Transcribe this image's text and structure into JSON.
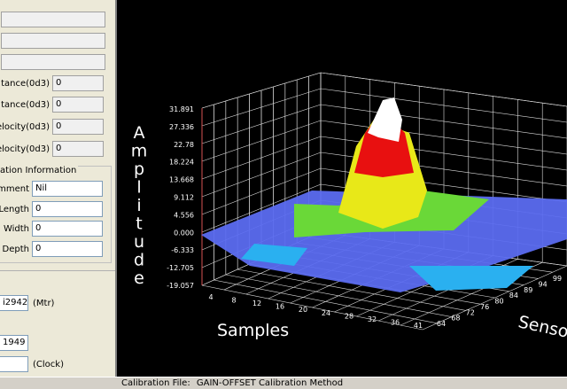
{
  "form": {
    "fields": [
      {
        "label": "",
        "value": ""
      },
      {
        "label": "",
        "value": ""
      },
      {
        "label": "",
        "value": ""
      },
      {
        "label": "tance(0d3)",
        "value": "0"
      },
      {
        "label": "tance(0d3)",
        "value": "0"
      },
      {
        "label": "elocity(0d3)",
        "value": "0"
      },
      {
        "label": "elocity(0d3)",
        "value": "0"
      }
    ],
    "group_title": "ation Information",
    "group_fields": [
      {
        "label": "omment",
        "value": "Nil"
      },
      {
        "label": "Length",
        "value": "0"
      },
      {
        "label": "l Width",
        "value": "0"
      },
      {
        "label": "l Depth",
        "value": "0"
      }
    ],
    "distance": {
      "value": "i2942",
      "unit": "(Mtr)"
    },
    "year": "1949",
    "clock": {
      "value": "",
      "unit": "(Clock)"
    }
  },
  "plot": {
    "y_label": "Amplitude",
    "x_label": "Samples",
    "z_label": "Senso",
    "y_ticks": [
      "31.891",
      "27.336",
      "22.78",
      "18.224",
      "13.668",
      "9.112",
      "4.556",
      "0.000",
      "-6.333",
      "-12.705",
      "-19.057"
    ],
    "x_ticks": [
      "4",
      "8",
      "12",
      "16",
      "20",
      "24",
      "28",
      "32",
      "36",
      "41"
    ],
    "z_ticks": [
      "64",
      "68",
      "72",
      "76",
      "80",
      "84",
      "89",
      "94",
      "99"
    ]
  },
  "status_bar": {
    "label": "Calibration File:",
    "value": "GAIN-OFFSET Calibration Method"
  }
}
